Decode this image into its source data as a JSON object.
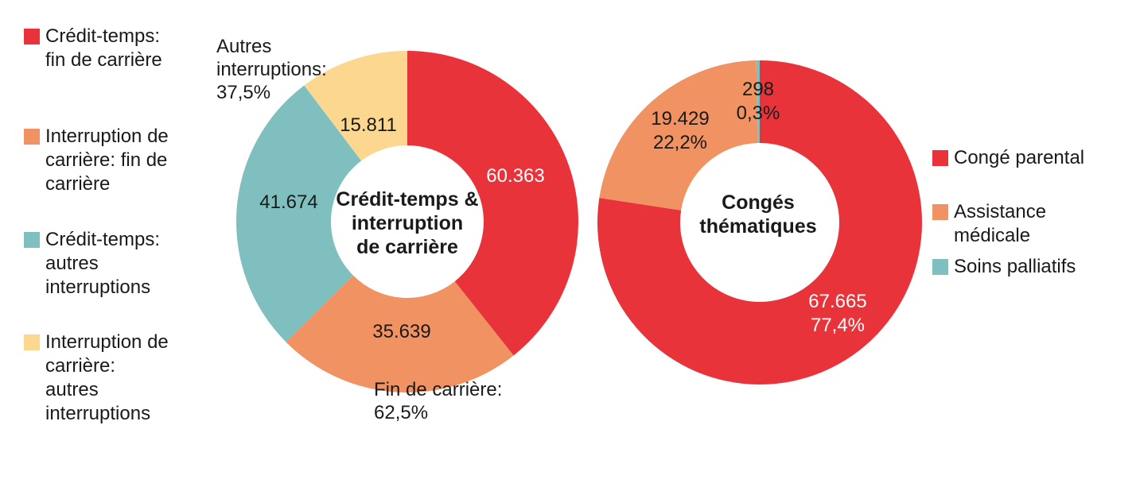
{
  "chart_data": [
    {
      "type": "pie",
      "subtype": "donut",
      "title": "Crédit-temps & interruption de carrière",
      "title_lines": [
        "Crédit-temps &",
        "interruption",
        "de carrière"
      ],
      "categories": [
        "Crédit-temps: fin de carrière",
        "Interruption de carrière: fin de carrière",
        "Crédit-temps: autres interruptions",
        "Interruption de carrière: autres interruptions"
      ],
      "values": [
        60363,
        35639,
        41674,
        15811
      ],
      "colors": [
        "#E9333A",
        "#F09261",
        "#7FBFBF",
        "#FCD78F"
      ],
      "slice_labels": [
        {
          "lines": [
            "60.363"
          ]
        },
        {
          "lines": [
            "35.639"
          ]
        },
        {
          "lines": [
            "41.674"
          ]
        },
        {
          "lines": [
            "15.811"
          ]
        }
      ],
      "annotations": [
        {
          "text": "Autres interruptions: 37,5%",
          "lines": [
            "Autres",
            "interruptions:",
            "37,5%"
          ]
        },
        {
          "text": "Fin de carrière: 62,5%",
          "lines": [
            "Fin de carrière:",
            "62,5%"
          ]
        }
      ],
      "legend": {
        "position": "left",
        "items": [
          {
            "label": "Crédit-temps: fin de carrière",
            "lines": [
              "Crédit-temps:",
              "fin de carrière"
            ]
          },
          {
            "label": "Interruption de carrière: fin de carrière",
            "lines": [
              "Interruption de",
              "carrière: fin de",
              "carrière"
            ]
          },
          {
            "label": "Crédit-temps: autres interruptions",
            "lines": [
              "Crédit-temps:",
              "autres",
              "interruptions"
            ]
          },
          {
            "label": "Interruption de carrière: autres interruptions",
            "lines": [
              "Interruption de",
              "carrière:",
              "autres",
              "interruptions"
            ]
          }
        ]
      }
    },
    {
      "type": "pie",
      "subtype": "donut",
      "title": "Congés thématiques",
      "title_lines": [
        "Congés",
        "thématiques"
      ],
      "categories": [
        "Congé parental",
        "Assistance médicale",
        "Soins palliatifs"
      ],
      "values": [
        67665,
        19429,
        298
      ],
      "colors": [
        "#E9333A",
        "#F09261",
        "#7FBFBF"
      ],
      "slice_labels": [
        {
          "lines": [
            "67.665",
            "77,4%"
          ]
        },
        {
          "lines": [
            "19.429",
            "22,2%"
          ]
        },
        {
          "lines": [
            "298",
            "0,3%"
          ]
        }
      ],
      "annotations": [],
      "legend": {
        "position": "right",
        "items": [
          {
            "label": "Congé parental",
            "lines": [
              "Congé parental"
            ]
          },
          {
            "label": "Assistance médicale",
            "lines": [
              "Assistance",
              "médicale"
            ]
          },
          {
            "label": "Soins palliatifs",
            "lines": [
              "Soins palliatifs"
            ]
          }
        ]
      }
    }
  ],
  "palette": {
    "red": "#E9333A",
    "orange": "#F09261",
    "teal": "#7FBFBF",
    "yellow": "#FCD78F",
    "text": "#1a1a1a",
    "background": "#ffffff"
  }
}
